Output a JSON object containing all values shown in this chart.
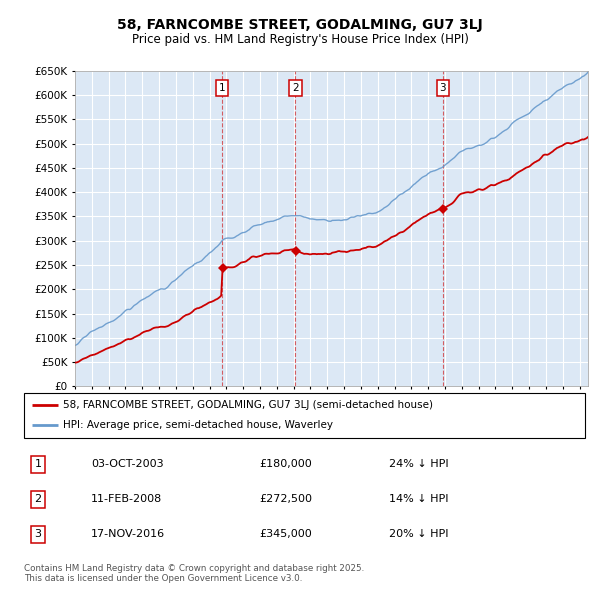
{
  "title_line1": "58, FARNCOMBE STREET, GODALMING, GU7 3LJ",
  "title_line2": "Price paid vs. HM Land Registry's House Price Index (HPI)",
  "legend_red": "58, FARNCOMBE STREET, GODALMING, GU7 3LJ (semi-detached house)",
  "legend_blue": "HPI: Average price, semi-detached house, Waverley",
  "footer": "Contains HM Land Registry data © Crown copyright and database right 2025.\nThis data is licensed under the Open Government Licence v3.0.",
  "sales": [
    {
      "num": 1,
      "date": "03-OCT-2003",
      "price": 180000,
      "pct": "24% ↓ HPI",
      "x_year": 2003.75
    },
    {
      "num": 2,
      "date": "11-FEB-2008",
      "price": 272500,
      "pct": "14% ↓ HPI",
      "x_year": 2008.1
    },
    {
      "num": 3,
      "date": "17-NOV-2016",
      "price": 345000,
      "pct": "20% ↓ HPI",
      "x_year": 2016.87
    }
  ],
  "ylim": [
    0,
    650000
  ],
  "yticks": [
    0,
    50000,
    100000,
    150000,
    200000,
    250000,
    300000,
    350000,
    400000,
    450000,
    500000,
    550000,
    600000,
    650000
  ],
  "background_color": "#ffffff",
  "plot_bg": "#dce8f5",
  "grid_color": "#ffffff",
  "red_color": "#cc0000",
  "blue_color": "#6699cc",
  "xlim_left": 1995.0,
  "xlim_right": 2025.5
}
